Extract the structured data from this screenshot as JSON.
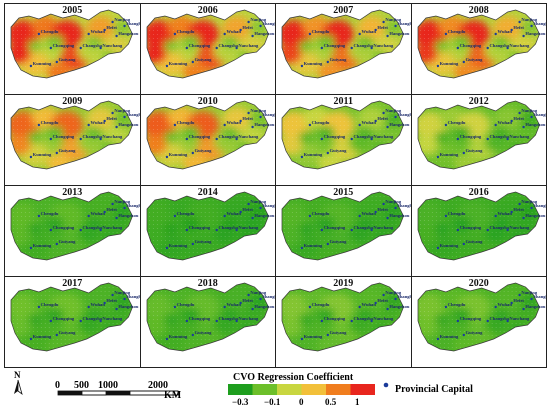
{
  "years": [
    {
      "label": "2005",
      "heat": 0.95
    },
    {
      "label": "2006",
      "heat": 0.92
    },
    {
      "label": "2007",
      "heat": 0.85
    },
    {
      "label": "2008",
      "heat": 0.88
    },
    {
      "label": "2009",
      "heat": 0.7
    },
    {
      "label": "2010",
      "heat": 0.72
    },
    {
      "label": "2011",
      "heat": 0.5
    },
    {
      "label": "2012",
      "heat": 0.38
    },
    {
      "label": "2013",
      "heat": 0.15
    },
    {
      "label": "2014",
      "heat": 0.08
    },
    {
      "label": "2015",
      "heat": 0.12
    },
    {
      "label": "2016",
      "heat": 0.1
    },
    {
      "label": "2017",
      "heat": 0.18
    },
    {
      "label": "2018",
      "heat": 0.16
    },
    {
      "label": "2019",
      "heat": 0.22
    },
    {
      "label": "2020",
      "heat": 0.2
    }
  ],
  "cities": [
    "Chengdu",
    "Chongqing",
    "Wuhan",
    "Changsha",
    "Nanchang",
    "Hefei",
    "Nanjing",
    "Hangzhou",
    "Shanghai",
    "Guiyang",
    "Kunming"
  ],
  "legend": {
    "title": "CVO Regression Coefficient",
    "ticks": [
      "−0.3",
      "−0.1",
      "0",
      "0.5",
      "1"
    ],
    "colors": [
      "#1e9e1e",
      "#6cbf2a",
      "#c8d640",
      "#f2c03a",
      "#f07d1e",
      "#e8261e"
    ]
  },
  "capital_label": "Provincial Capital",
  "scale": {
    "ticks": [
      "0",
      "500",
      "1000",
      "2000"
    ],
    "unit": "KM"
  },
  "north_label": "N"
}
